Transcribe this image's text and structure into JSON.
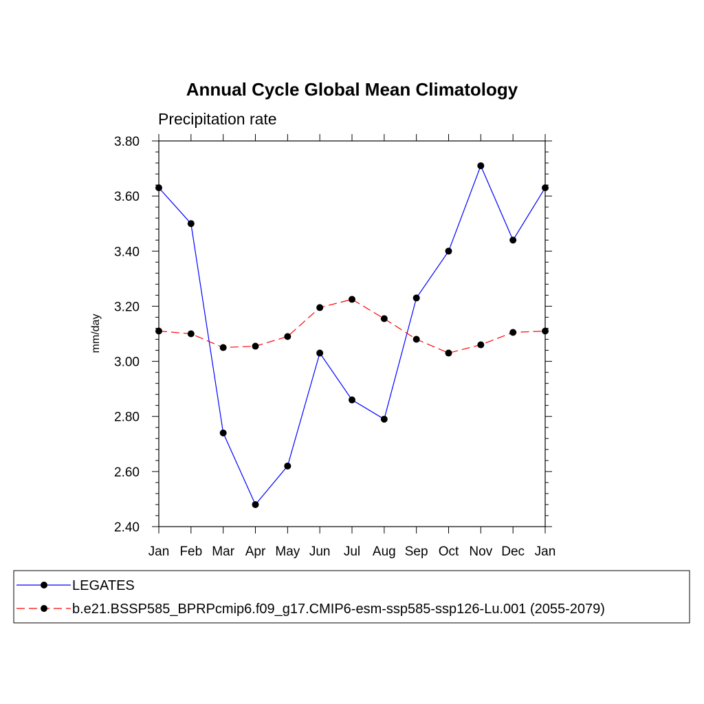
{
  "chart_data": {
    "type": "line",
    "title": "Annual Cycle Global Mean Climatology",
    "subtitle": "Precipitation rate",
    "xlabel": "",
    "ylabel": "mm/day",
    "categories": [
      "Jan",
      "Feb",
      "Mar",
      "Apr",
      "May",
      "Jun",
      "Jul",
      "Aug",
      "Sep",
      "Oct",
      "Nov",
      "Dec",
      "Jan"
    ],
    "ylim": [
      2.4,
      3.8
    ],
    "yticks": [
      "2.40",
      "2.60",
      "2.80",
      "3.00",
      "3.20",
      "3.40",
      "3.60",
      "3.80"
    ],
    "series": [
      {
        "name": "LEGATES",
        "color": "#0000ff",
        "dash": "solid",
        "values": [
          3.63,
          3.5,
          2.74,
          2.48,
          2.62,
          3.03,
          2.86,
          2.79,
          3.23,
          3.4,
          3.71,
          3.44,
          3.63
        ]
      },
      {
        "name": "b.e21.BSSP585_BPRPcmip6.f09_g17.CMIP6-esm-ssp585-ssp126-Lu.001 (2055-2079)",
        "color": "#ff0000",
        "dash": "dashed",
        "values": [
          3.11,
          3.1,
          3.05,
          3.055,
          3.09,
          3.195,
          3.225,
          3.155,
          3.08,
          3.03,
          3.06,
          3.105,
          3.11
        ]
      }
    ],
    "grid": false,
    "legend_position": "bottom"
  }
}
